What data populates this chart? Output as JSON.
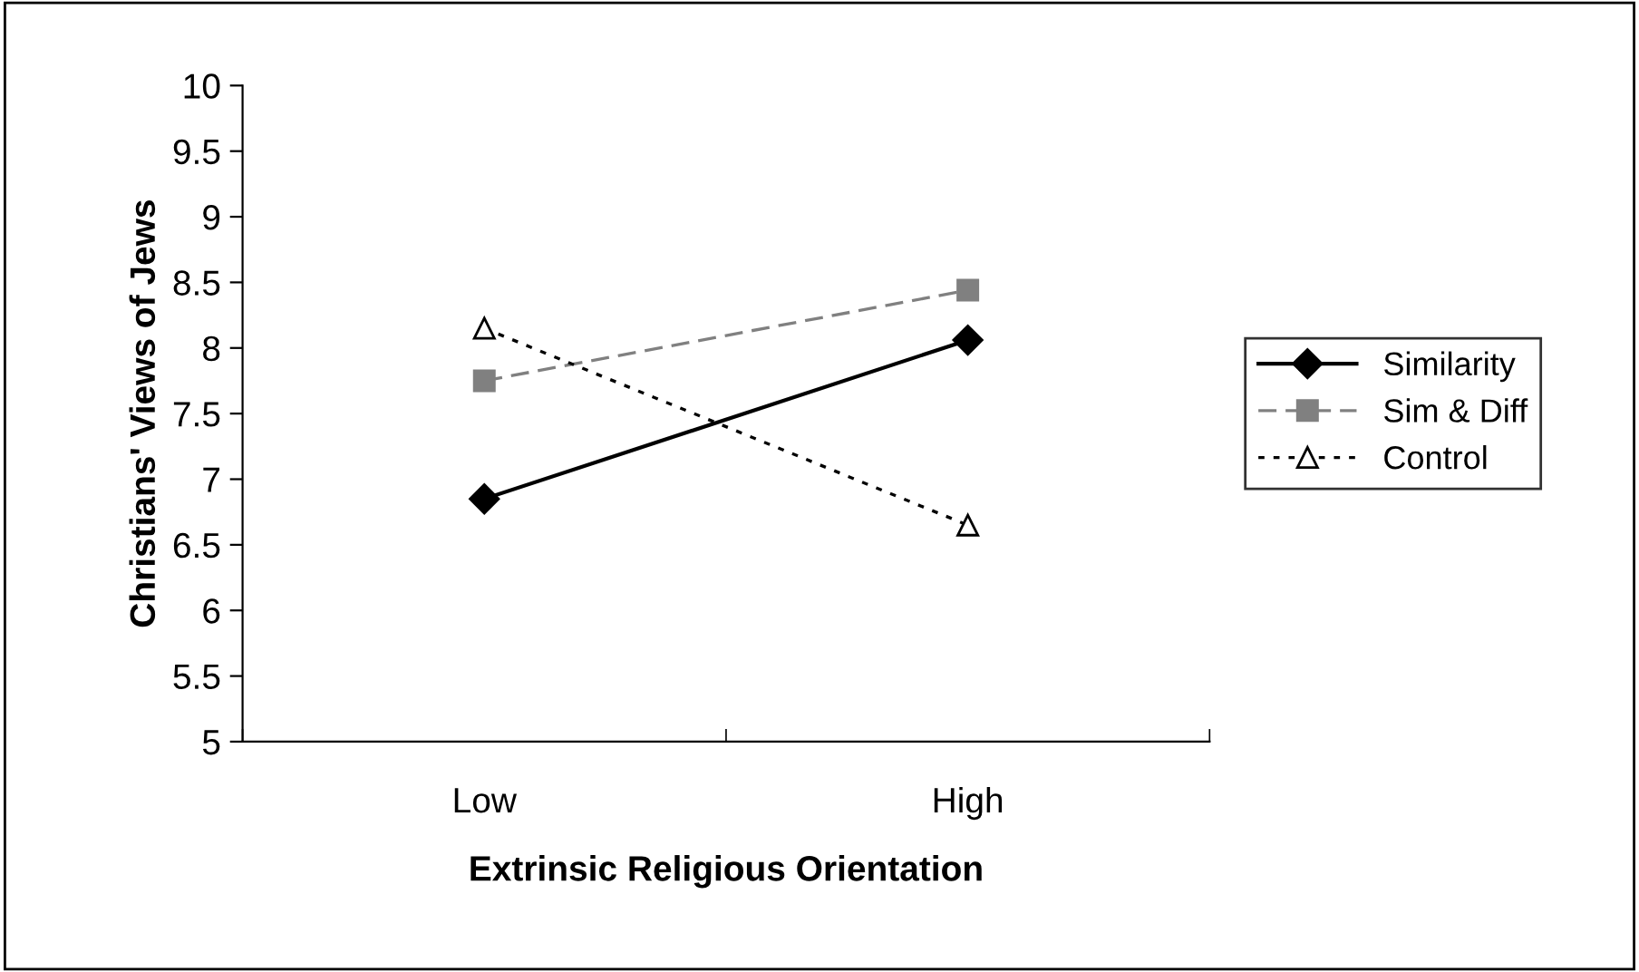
{
  "chart_data": {
    "type": "line",
    "xlabel": "Extrinsic Religious Orientation",
    "ylabel": "Christians' Views of Jews",
    "categories": [
      "Low",
      "High"
    ],
    "series": [
      {
        "name": "Similarity",
        "color": "#000000",
        "values": [
          6.85,
          8.06
        ],
        "marker": "diamond",
        "line_style": "solid"
      },
      {
        "name": "Sim & Diff",
        "color": "#808080",
        "values": [
          7.75,
          8.44
        ],
        "marker": "square",
        "line_style": "dashed"
      },
      {
        "name": "Control",
        "color": "#000000",
        "values": [
          8.15,
          6.65
        ],
        "marker": "triangle",
        "line_style": "dotted"
      }
    ],
    "ylim": [
      5,
      10
    ],
    "yticks": [
      5,
      5.5,
      6,
      6.5,
      7,
      7.5,
      8,
      8.5,
      9,
      9.5,
      10
    ],
    "grid": false,
    "legend": "right"
  }
}
